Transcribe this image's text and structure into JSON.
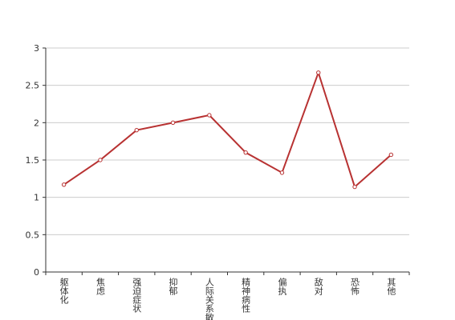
{
  "chart_data": {
    "type": "line",
    "categories": [
      "躯体化",
      "焦虑",
      "强迫症状",
      "抑郁",
      "人际关系敏感",
      "精神病性",
      "偏执",
      "敌对",
      "恐怖",
      "其他"
    ],
    "series": [
      {
        "color": "#b83232",
        "values": [
          1.17,
          1.5,
          1.9,
          2.0,
          2.1,
          1.6,
          1.33,
          2.67,
          1.14,
          1.57
        ]
      }
    ],
    "ylim": [
      0,
      3
    ],
    "yticks": [
      0,
      0.5,
      1,
      1.5,
      2,
      2.5,
      3
    ],
    "grid": true
  }
}
